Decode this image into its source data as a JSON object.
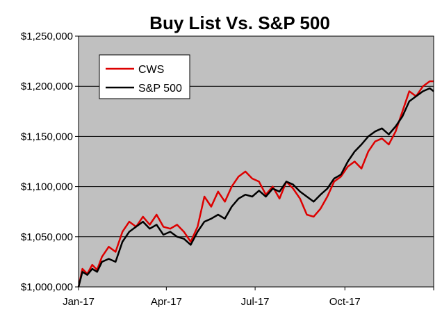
{
  "chart_data": {
    "type": "line",
    "title": "Buy List Vs. S&P 500",
    "xlabel": "",
    "ylabel": "",
    "x_tick_labels": [
      "Jan-17",
      "Apr-17",
      "Jul-17",
      "Oct-17"
    ],
    "x_tick_positions": [
      "2017-01-01",
      "2017-04-01",
      "2017-07-01",
      "2017-10-01"
    ],
    "y_tick_labels": [
      "$1,000,000",
      "$1,050,000",
      "$1,100,000",
      "$1,150,000",
      "$1,200,000",
      "$1,250,000"
    ],
    "y_ticks": [
      1000000,
      1050000,
      1100000,
      1150000,
      1200000,
      1250000
    ],
    "ylim": [
      1000000,
      1250000
    ],
    "xlim": [
      "2017-01-01",
      "2017-12-31"
    ],
    "grid": "horizontal",
    "legend_position": "top-left",
    "background_color": "#c0c0c0",
    "series": [
      {
        "name": "CWS",
        "color": "#dd0000",
        "x": [
          "2017-01-01",
          "2017-01-05",
          "2017-01-10",
          "2017-01-15",
          "2017-01-20",
          "2017-01-25",
          "2017-02-01",
          "2017-02-08",
          "2017-02-15",
          "2017-02-22",
          "2017-03-01",
          "2017-03-08",
          "2017-03-15",
          "2017-03-22",
          "2017-03-29",
          "2017-04-05",
          "2017-04-12",
          "2017-04-19",
          "2017-04-26",
          "2017-05-03",
          "2017-05-10",
          "2017-05-17",
          "2017-05-24",
          "2017-05-31",
          "2017-06-07",
          "2017-06-14",
          "2017-06-21",
          "2017-06-28",
          "2017-07-05",
          "2017-07-12",
          "2017-07-19",
          "2017-07-26",
          "2017-08-02",
          "2017-08-09",
          "2017-08-16",
          "2017-08-23",
          "2017-08-30",
          "2017-09-06",
          "2017-09-13",
          "2017-09-20",
          "2017-09-27",
          "2017-10-04",
          "2017-10-11",
          "2017-10-18",
          "2017-10-25",
          "2017-11-01",
          "2017-11-08",
          "2017-11-15",
          "2017-11-22",
          "2017-11-29",
          "2017-12-06",
          "2017-12-13",
          "2017-12-20",
          "2017-12-27",
          "2017-12-31"
        ],
        "values": [
          1000000,
          1018000,
          1013000,
          1022000,
          1017000,
          1030000,
          1040000,
          1035000,
          1055000,
          1065000,
          1060000,
          1070000,
          1062000,
          1072000,
          1060000,
          1058000,
          1062000,
          1055000,
          1045000,
          1060000,
          1090000,
          1080000,
          1095000,
          1085000,
          1100000,
          1110000,
          1115000,
          1108000,
          1105000,
          1092000,
          1100000,
          1088000,
          1105000,
          1098000,
          1088000,
          1072000,
          1070000,
          1078000,
          1090000,
          1105000,
          1110000,
          1120000,
          1125000,
          1118000,
          1135000,
          1145000,
          1148000,
          1142000,
          1155000,
          1175000,
          1195000,
          1190000,
          1200000,
          1205000,
          1205000
        ]
      },
      {
        "name": "S&P 500",
        "color": "#000000",
        "x": [
          "2017-01-01",
          "2017-01-05",
          "2017-01-10",
          "2017-01-15",
          "2017-01-20",
          "2017-01-25",
          "2017-02-01",
          "2017-02-08",
          "2017-02-15",
          "2017-02-22",
          "2017-03-01",
          "2017-03-08",
          "2017-03-15",
          "2017-03-22",
          "2017-03-29",
          "2017-04-05",
          "2017-04-12",
          "2017-04-19",
          "2017-04-26",
          "2017-05-03",
          "2017-05-10",
          "2017-05-17",
          "2017-05-24",
          "2017-05-31",
          "2017-06-07",
          "2017-06-14",
          "2017-06-21",
          "2017-06-28",
          "2017-07-05",
          "2017-07-12",
          "2017-07-19",
          "2017-07-26",
          "2017-08-02",
          "2017-08-09",
          "2017-08-16",
          "2017-08-23",
          "2017-08-30",
          "2017-09-06",
          "2017-09-13",
          "2017-09-20",
          "2017-09-27",
          "2017-10-04",
          "2017-10-11",
          "2017-10-18",
          "2017-10-25",
          "2017-11-01",
          "2017-11-08",
          "2017-11-15",
          "2017-11-22",
          "2017-11-29",
          "2017-12-06",
          "2017-12-13",
          "2017-12-20",
          "2017-12-27",
          "2017-12-31"
        ],
        "values": [
          1000000,
          1015000,
          1012000,
          1018000,
          1015000,
          1025000,
          1028000,
          1025000,
          1045000,
          1055000,
          1060000,
          1065000,
          1058000,
          1062000,
          1052000,
          1055000,
          1050000,
          1048000,
          1042000,
          1055000,
          1065000,
          1068000,
          1072000,
          1068000,
          1080000,
          1088000,
          1092000,
          1090000,
          1096000,
          1090000,
          1098000,
          1095000,
          1105000,
          1102000,
          1095000,
          1090000,
          1085000,
          1092000,
          1098000,
          1108000,
          1112000,
          1125000,
          1135000,
          1142000,
          1150000,
          1155000,
          1158000,
          1152000,
          1160000,
          1170000,
          1185000,
          1190000,
          1195000,
          1198000,
          1195000
        ]
      }
    ]
  }
}
